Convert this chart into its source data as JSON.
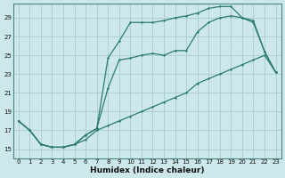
{
  "background_color": "#cce8ea",
  "grid_color": "#aacfd4",
  "line_color": "#2d7a6e",
  "xlabel": "Humidex (Indice chaleur)",
  "xlim": [
    -0.5,
    23.5
  ],
  "ylim": [
    14.0,
    30.5
  ],
  "xticks": [
    0,
    1,
    2,
    3,
    4,
    5,
    6,
    7,
    8,
    9,
    10,
    11,
    12,
    13,
    14,
    15,
    16,
    17,
    18,
    19,
    20,
    21,
    22,
    23
  ],
  "yticks": [
    15,
    17,
    19,
    21,
    23,
    25,
    27,
    29
  ],
  "curve_bottom_x": [
    0,
    1,
    2,
    3,
    4,
    5,
    6,
    7,
    8,
    9,
    10,
    11,
    12,
    13,
    14,
    15,
    16,
    17,
    18,
    19,
    20,
    21,
    22,
    23
  ],
  "curve_bottom_y": [
    18.0,
    17.0,
    15.5,
    15.2,
    15.2,
    15.5,
    16.0,
    17.0,
    17.5,
    18.0,
    18.5,
    19.0,
    19.5,
    20.0,
    20.5,
    21.0,
    22.0,
    22.5,
    23.0,
    23.5,
    24.0,
    24.5,
    25.0,
    23.2
  ],
  "curve_middle_x": [
    0,
    1,
    2,
    3,
    4,
    5,
    6,
    7,
    8,
    9,
    10,
    11,
    12,
    13,
    14,
    15,
    16,
    17,
    18,
    19,
    20,
    21,
    22,
    23
  ],
  "curve_middle_y": [
    18.0,
    17.0,
    15.5,
    15.2,
    15.2,
    15.5,
    16.5,
    17.2,
    21.5,
    24.5,
    24.7,
    25.0,
    25.2,
    25.0,
    25.5,
    25.5,
    27.5,
    28.5,
    29.0,
    29.2,
    29.0,
    28.5,
    25.4,
    23.2
  ],
  "curve_top_x": [
    0,
    1,
    2,
    3,
    4,
    5,
    6,
    7,
    8,
    9,
    10,
    11,
    12,
    13,
    14,
    15,
    16,
    17,
    18,
    19,
    20,
    21,
    22,
    23
  ],
  "curve_top_y": [
    18.0,
    17.0,
    15.5,
    15.2,
    15.2,
    15.5,
    16.5,
    17.2,
    24.7,
    26.5,
    28.5,
    28.5,
    28.5,
    28.7,
    29.0,
    29.2,
    29.5,
    30.0,
    30.2,
    30.2,
    29.0,
    28.7,
    25.4,
    23.2
  ]
}
